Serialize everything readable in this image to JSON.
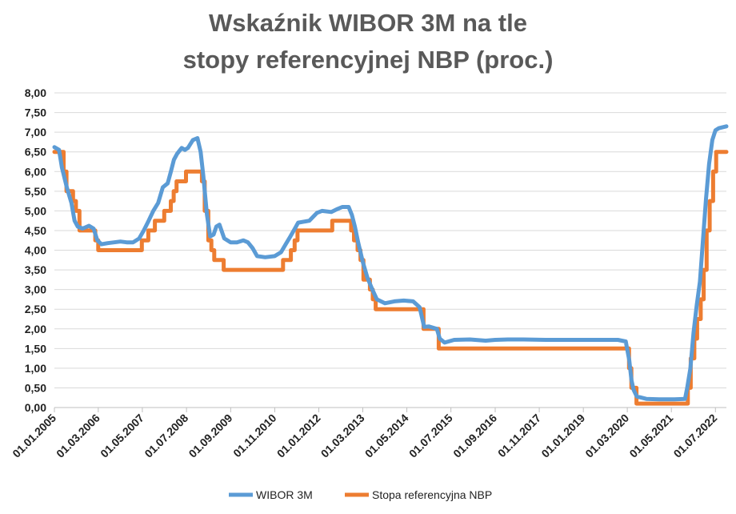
{
  "chart_data": {
    "type": "line",
    "title_line1": "Wskaźnik WIBOR 3M na tle",
    "title_line2": "stopy referencyjnej NBP (proc.)",
    "ylim": [
      0,
      8
    ],
    "yticks": [
      "0,00",
      "0,50",
      "1,00",
      "1,50",
      "2,00",
      "2,50",
      "3,00",
      "3,50",
      "4,00",
      "4,50",
      "5,00",
      "5,50",
      "6,00",
      "6,50",
      "7,00",
      "7,50",
      "8,00"
    ],
    "x_date_range": [
      "2005-01-01",
      "2022-10-15"
    ],
    "xticks": [
      {
        "label": "01.01.2005",
        "date": "2005-01-01"
      },
      {
        "label": "01.03.2006",
        "date": "2006-03-01"
      },
      {
        "label": "01.05.2007",
        "date": "2007-05-01"
      },
      {
        "label": "01.07.2008",
        "date": "2008-07-01"
      },
      {
        "label": "01.09.2009",
        "date": "2009-09-01"
      },
      {
        "label": "01.11.2010",
        "date": "2010-11-01"
      },
      {
        "label": "01.01.2012",
        "date": "2012-01-01"
      },
      {
        "label": "01.03.2013",
        "date": "2013-03-01"
      },
      {
        "label": "01.05.2014",
        "date": "2014-05-01"
      },
      {
        "label": "01.07.2015",
        "date": "2015-07-01"
      },
      {
        "label": "01.09.2016",
        "date": "2016-09-01"
      },
      {
        "label": "01.11.2017",
        "date": "2017-11-01"
      },
      {
        "label": "01.01.2019",
        "date": "2019-01-01"
      },
      {
        "label": "01.03.2020",
        "date": "2020-03-01"
      },
      {
        "label": "01.05.2021",
        "date": "2021-05-01"
      },
      {
        "label": "01.07.2022",
        "date": "2022-07-01"
      }
    ],
    "grid": true,
    "legend_position": "bottom-center",
    "series": [
      {
        "name": "WIBOR 3M",
        "color": "#5B9BD5",
        "style": "line",
        "points": [
          [
            "2005-01-01",
            6.62
          ],
          [
            "2005-02-15",
            6.55
          ],
          [
            "2005-03-15",
            6.1
          ],
          [
            "2005-05-01",
            5.6
          ],
          [
            "2005-06-15",
            5.2
          ],
          [
            "2005-07-15",
            4.75
          ],
          [
            "2005-08-15",
            4.6
          ],
          [
            "2005-10-01",
            4.55
          ],
          [
            "2005-12-01",
            4.62
          ],
          [
            "2006-01-15",
            4.55
          ],
          [
            "2006-02-20",
            4.25
          ],
          [
            "2006-04-01",
            4.15
          ],
          [
            "2006-06-01",
            4.18
          ],
          [
            "2006-08-01",
            4.2
          ],
          [
            "2006-10-01",
            4.22
          ],
          [
            "2006-12-01",
            4.2
          ],
          [
            "2007-02-01",
            4.2
          ],
          [
            "2007-04-01",
            4.3
          ],
          [
            "2007-05-15",
            4.5
          ],
          [
            "2007-07-01",
            4.75
          ],
          [
            "2007-08-15",
            5.0
          ],
          [
            "2007-10-01",
            5.2
          ],
          [
            "2007-11-15",
            5.6
          ],
          [
            "2008-01-01",
            5.7
          ],
          [
            "2008-02-01",
            6.0
          ],
          [
            "2008-03-01",
            6.3
          ],
          [
            "2008-04-01",
            6.45
          ],
          [
            "2008-05-15",
            6.6
          ],
          [
            "2008-06-15",
            6.55
          ],
          [
            "2008-07-15",
            6.6
          ],
          [
            "2008-09-01",
            6.8
          ],
          [
            "2008-10-15",
            6.85
          ],
          [
            "2008-11-15",
            6.5
          ],
          [
            "2008-12-10",
            5.9
          ],
          [
            "2009-01-15",
            4.9
          ],
          [
            "2009-02-15",
            4.35
          ],
          [
            "2009-03-20",
            4.4
          ],
          [
            "2009-04-15",
            4.6
          ],
          [
            "2009-05-15",
            4.65
          ],
          [
            "2009-07-01",
            4.3
          ],
          [
            "2009-09-01",
            4.2
          ],
          [
            "2009-11-01",
            4.2
          ],
          [
            "2010-01-01",
            4.25
          ],
          [
            "2010-02-15",
            4.2
          ],
          [
            "2010-04-01",
            4.05
          ],
          [
            "2010-05-15",
            3.85
          ],
          [
            "2010-08-01",
            3.82
          ],
          [
            "2010-11-01",
            3.85
          ],
          [
            "2011-01-01",
            3.95
          ],
          [
            "2011-02-15",
            4.15
          ],
          [
            "2011-04-01",
            4.35
          ],
          [
            "2011-05-15",
            4.55
          ],
          [
            "2011-06-15",
            4.7
          ],
          [
            "2011-10-01",
            4.75
          ],
          [
            "2011-12-15",
            4.95
          ],
          [
            "2012-02-01",
            5.0
          ],
          [
            "2012-05-01",
            4.97
          ],
          [
            "2012-07-01",
            5.05
          ],
          [
            "2012-08-15",
            5.1
          ],
          [
            "2012-10-15",
            5.1
          ],
          [
            "2012-11-15",
            4.9
          ],
          [
            "2012-12-15",
            4.6
          ],
          [
            "2013-01-15",
            4.2
          ],
          [
            "2013-03-01",
            3.7
          ],
          [
            "2013-04-15",
            3.3
          ],
          [
            "2013-06-01",
            3.0
          ],
          [
            "2013-07-15",
            2.75
          ],
          [
            "2013-10-01",
            2.65
          ],
          [
            "2014-01-01",
            2.7
          ],
          [
            "2014-04-01",
            2.72
          ],
          [
            "2014-07-01",
            2.7
          ],
          [
            "2014-09-01",
            2.55
          ],
          [
            "2014-10-15",
            2.05
          ],
          [
            "2014-12-01",
            2.06
          ],
          [
            "2015-02-15",
            2.0
          ],
          [
            "2015-03-15",
            1.75
          ],
          [
            "2015-05-01",
            1.65
          ],
          [
            "2015-08-01",
            1.72
          ],
          [
            "2016-01-01",
            1.73
          ],
          [
            "2016-06-01",
            1.7
          ],
          [
            "2016-09-01",
            1.72
          ],
          [
            "2017-01-01",
            1.73
          ],
          [
            "2017-06-01",
            1.73
          ],
          [
            "2018-01-01",
            1.72
          ],
          [
            "2018-06-01",
            1.72
          ],
          [
            "2019-01-01",
            1.72
          ],
          [
            "2019-06-01",
            1.72
          ],
          [
            "2019-12-01",
            1.72
          ],
          [
            "2020-02-15",
            1.68
          ],
          [
            "2020-03-20",
            1.2
          ],
          [
            "2020-04-10",
            0.7
          ],
          [
            "2020-05-01",
            0.45
          ],
          [
            "2020-06-01",
            0.28
          ],
          [
            "2020-09-01",
            0.22
          ],
          [
            "2021-01-01",
            0.21
          ],
          [
            "2021-06-01",
            0.21
          ],
          [
            "2021-09-10",
            0.22
          ],
          [
            "2021-10-01",
            0.5
          ],
          [
            "2021-11-01",
            1.0
          ],
          [
            "2021-12-01",
            1.9
          ],
          [
            "2022-01-01",
            2.6
          ],
          [
            "2022-02-01",
            3.2
          ],
          [
            "2022-03-01",
            4.2
          ],
          [
            "2022-04-01",
            5.3
          ],
          [
            "2022-05-01",
            6.2
          ],
          [
            "2022-06-01",
            6.8
          ],
          [
            "2022-07-01",
            7.05
          ],
          [
            "2022-08-01",
            7.1
          ],
          [
            "2022-09-01",
            7.12
          ],
          [
            "2022-10-15",
            7.15
          ]
        ]
      },
      {
        "name": "Stopa referencyjna NBP",
        "color": "#ED7D31",
        "style": "step",
        "points": [
          [
            "2005-01-01",
            6.5
          ],
          [
            "2005-03-31",
            6.0
          ],
          [
            "2005-04-28",
            5.5
          ],
          [
            "2005-06-30",
            5.25
          ],
          [
            "2005-07-28",
            5.0
          ],
          [
            "2005-08-31",
            4.75
          ],
          [
            "2005-09-01",
            4.5
          ],
          [
            "2006-01-31",
            4.25
          ],
          [
            "2006-03-01",
            4.0
          ],
          [
            "2007-04-26",
            4.25
          ],
          [
            "2007-06-28",
            4.5
          ],
          [
            "2007-08-30",
            4.75
          ],
          [
            "2007-11-29",
            5.0
          ],
          [
            "2008-01-31",
            5.25
          ],
          [
            "2008-02-28",
            5.5
          ],
          [
            "2008-03-27",
            5.75
          ],
          [
            "2008-06-26",
            6.0
          ],
          [
            "2008-11-27",
            5.75
          ],
          [
            "2008-12-24",
            5.0
          ],
          [
            "2009-01-28",
            4.25
          ],
          [
            "2009-02-26",
            4.0
          ],
          [
            "2009-03-26",
            3.75
          ],
          [
            "2009-06-25",
            3.5
          ],
          [
            "2011-01-20",
            3.75
          ],
          [
            "2011-04-06",
            4.0
          ],
          [
            "2011-05-12",
            4.25
          ],
          [
            "2011-06-09",
            4.5
          ],
          [
            "2012-05-10",
            4.75
          ],
          [
            "2012-11-08",
            4.5
          ],
          [
            "2012-12-06",
            4.25
          ],
          [
            "2013-01-10",
            4.0
          ],
          [
            "2013-02-07",
            3.75
          ],
          [
            "2013-03-07",
            3.25
          ],
          [
            "2013-05-09",
            3.0
          ],
          [
            "2013-06-06",
            2.75
          ],
          [
            "2013-07-04",
            2.5
          ],
          [
            "2014-10-09",
            2.0
          ],
          [
            "2015-03-05",
            1.5
          ],
          [
            "2020-03-18",
            1.0
          ],
          [
            "2020-04-09",
            0.5
          ],
          [
            "2020-05-29",
            0.1
          ],
          [
            "2021-10-07",
            0.5
          ],
          [
            "2021-11-04",
            1.25
          ],
          [
            "2021-12-09",
            1.75
          ],
          [
            "2022-01-05",
            2.25
          ],
          [
            "2022-02-09",
            2.75
          ],
          [
            "2022-03-09",
            3.5
          ],
          [
            "2022-04-07",
            4.5
          ],
          [
            "2022-05-06",
            5.25
          ],
          [
            "2022-06-09",
            6.0
          ],
          [
            "2022-07-08",
            6.5
          ],
          [
            "2022-10-15",
            6.5
          ]
        ]
      }
    ]
  }
}
